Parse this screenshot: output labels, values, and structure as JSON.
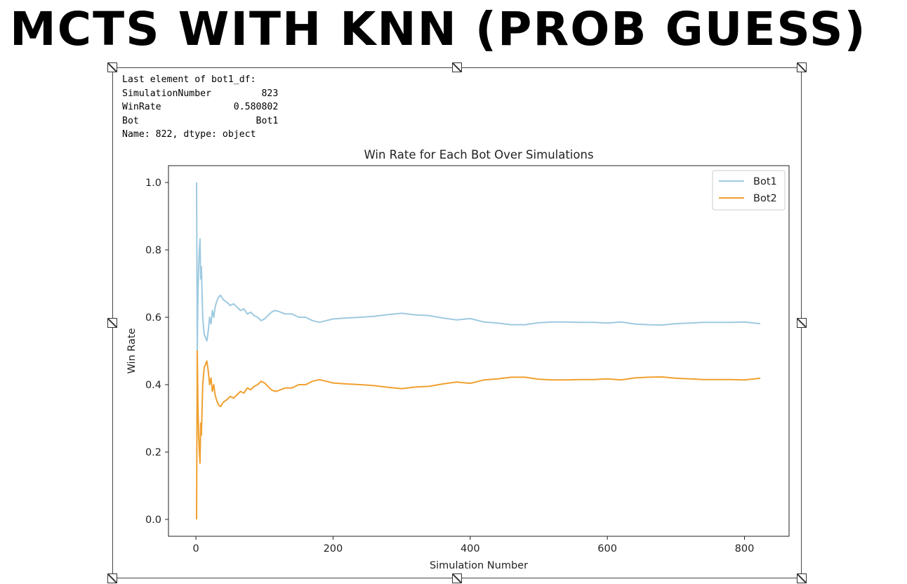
{
  "slide": {
    "title": "MCTS WITH KNN (PROB GUESS)"
  },
  "output": {
    "lines": [
      "Last element of bot1_df:",
      "SimulationNumber         823",
      "WinRate             0.580802",
      "Bot                     Bot1",
      "Name: 822, dtype: object"
    ]
  },
  "chart_data": {
    "type": "line",
    "title": "Win Rate for Each Bot Over Simulations",
    "xlabel": "Simulation Number",
    "ylabel": "Win Rate",
    "xlim": [
      -40,
      865
    ],
    "ylim": [
      -0.05,
      1.05
    ],
    "x_ticks": [
      0,
      200,
      400,
      600,
      800
    ],
    "y_ticks": [
      0.0,
      0.2,
      0.4,
      0.6,
      0.8,
      1.0
    ],
    "x_tick_labels": [
      "0",
      "200",
      "400",
      "600",
      "800"
    ],
    "y_tick_labels": [
      "0.0",
      "0.2",
      "0.4",
      "0.6",
      "0.8",
      "1.0"
    ],
    "grid": false,
    "legend_position": "top-right",
    "series": [
      {
        "name": "Bot1",
        "color": "#9ecae1",
        "x": [
          1,
          2,
          3,
          4,
          5,
          6,
          7,
          8,
          9,
          10,
          12,
          14,
          16,
          18,
          20,
          22,
          24,
          26,
          28,
          30,
          33,
          36,
          40,
          45,
          50,
          55,
          60,
          65,
          70,
          75,
          80,
          85,
          90,
          95,
          100,
          105,
          110,
          115,
          120,
          130,
          140,
          150,
          160,
          170,
          180,
          190,
          200,
          220,
          240,
          260,
          280,
          300,
          320,
          340,
          360,
          380,
          400,
          420,
          440,
          460,
          480,
          500,
          520,
          540,
          560,
          580,
          600,
          620,
          640,
          660,
          680,
          700,
          720,
          740,
          760,
          780,
          800,
          823
        ],
        "values": [
          1.0,
          0.5,
          0.667,
          0.75,
          0.8,
          0.833,
          0.714,
          0.75,
          0.667,
          0.6,
          0.55,
          0.54,
          0.53,
          0.56,
          0.6,
          0.58,
          0.62,
          0.6,
          0.63,
          0.645,
          0.66,
          0.665,
          0.652,
          0.645,
          0.635,
          0.64,
          0.63,
          0.62,
          0.625,
          0.61,
          0.615,
          0.605,
          0.6,
          0.59,
          0.595,
          0.605,
          0.615,
          0.62,
          0.618,
          0.61,
          0.61,
          0.6,
          0.6,
          0.59,
          0.585,
          0.59,
          0.595,
          0.598,
          0.6,
          0.603,
          0.608,
          0.612,
          0.607,
          0.605,
          0.598,
          0.592,
          0.596,
          0.586,
          0.583,
          0.578,
          0.578,
          0.584,
          0.586,
          0.586,
          0.585,
          0.585,
          0.583,
          0.586,
          0.58,
          0.578,
          0.577,
          0.581,
          0.583,
          0.585,
          0.585,
          0.585,
          0.586,
          0.581
        ]
      },
      {
        "name": "Bot2",
        "color": "#f0a030",
        "x": [
          1,
          2,
          3,
          4,
          5,
          6,
          7,
          8,
          9,
          10,
          12,
          14,
          16,
          18,
          20,
          22,
          24,
          26,
          28,
          30,
          33,
          36,
          40,
          45,
          50,
          55,
          60,
          65,
          70,
          75,
          80,
          85,
          90,
          95,
          100,
          105,
          110,
          115,
          120,
          130,
          140,
          150,
          160,
          170,
          180,
          190,
          200,
          220,
          240,
          260,
          280,
          300,
          320,
          340,
          360,
          380,
          400,
          420,
          440,
          460,
          480,
          500,
          520,
          540,
          560,
          580,
          600,
          620,
          640,
          660,
          680,
          700,
          720,
          740,
          760,
          780,
          800,
          823
        ],
        "values": [
          0.0,
          0.5,
          0.333,
          0.25,
          0.2,
          0.167,
          0.286,
          0.25,
          0.333,
          0.4,
          0.45,
          0.46,
          0.47,
          0.44,
          0.4,
          0.42,
          0.38,
          0.4,
          0.37,
          0.355,
          0.34,
          0.335,
          0.348,
          0.355,
          0.365,
          0.36,
          0.37,
          0.38,
          0.375,
          0.39,
          0.385,
          0.395,
          0.4,
          0.41,
          0.405,
          0.395,
          0.385,
          0.38,
          0.382,
          0.39,
          0.39,
          0.4,
          0.4,
          0.41,
          0.415,
          0.41,
          0.405,
          0.402,
          0.4,
          0.397,
          0.392,
          0.388,
          0.393,
          0.395,
          0.402,
          0.408,
          0.404,
          0.414,
          0.417,
          0.422,
          0.422,
          0.416,
          0.414,
          0.414,
          0.415,
          0.415,
          0.417,
          0.414,
          0.42,
          0.422,
          0.423,
          0.419,
          0.417,
          0.415,
          0.415,
          0.415,
          0.414,
          0.419
        ]
      }
    ]
  }
}
